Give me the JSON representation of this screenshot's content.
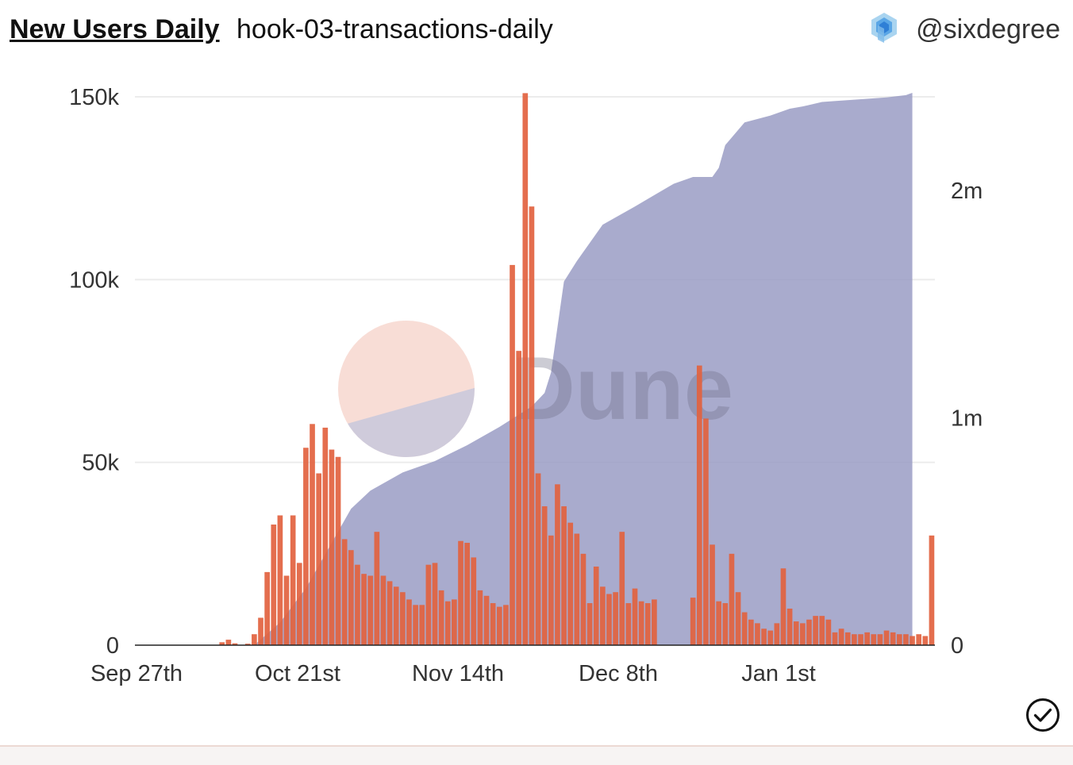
{
  "header": {
    "title": "New Users Daily",
    "subtitle": "hook-03-transactions-daily",
    "author": "@sixdegree",
    "author_icon": "cube-cluster-icon"
  },
  "watermark": {
    "text": "Dune"
  },
  "colors": {
    "bars": "#e2623f",
    "area": "#9a9cc4",
    "watermark_top": "#f5cfc4",
    "watermark_bottom": "#c4c7dc"
  },
  "chart_data": {
    "type": "bar",
    "x_tick_labels": [
      "Sep 27th",
      "Oct 21st",
      "Nov 14th",
      "Dec 8th",
      "Jan 1st"
    ],
    "y_left": {
      "ticks": [
        0,
        50000,
        100000,
        150000
      ],
      "tick_labels": [
        "0",
        "50k",
        "100k",
        "150k"
      ],
      "lim": [
        0,
        150000
      ]
    },
    "y_right": {
      "ticks": [
        0,
        1000000,
        2000000
      ],
      "tick_labels": [
        "0",
        "1m",
        "2m"
      ],
      "lim": [
        0,
        2430000
      ]
    },
    "grid": true,
    "series": [
      {
        "type": "bar",
        "axis": "left",
        "values": [
          0,
          0,
          0,
          0,
          0,
          0,
          0,
          0,
          0,
          0,
          0,
          0,
          0,
          800,
          1500,
          500,
          0,
          400,
          3000,
          7500,
          20000,
          33000,
          35500,
          19000,
          35500,
          22500,
          54000,
          60500,
          47000,
          59500,
          53500,
          51500,
          29000,
          26000,
          22000,
          19500,
          19000,
          31000,
          19000,
          17500,
          16000,
          14500,
          12500,
          11000,
          11000,
          22000,
          22500,
          15000,
          12000,
          12500,
          28500,
          28000,
          24000,
          15000,
          13500,
          11500,
          10500,
          11000,
          104000,
          80500,
          151000,
          120000,
          47000,
          38000,
          30000,
          44000,
          38000,
          33500,
          30500,
          25000,
          11500,
          21500,
          16000,
          14000,
          14500,
          31000,
          11500,
          15500,
          12000,
          11500,
          12500,
          0,
          0,
          0,
          0,
          0,
          13000,
          76500,
          62000,
          27500,
          12000,
          11500,
          25000,
          14500,
          9000,
          7000,
          6000,
          4500,
          4000,
          6000,
          21000,
          10000,
          6500,
          6000,
          7000,
          8000,
          8000,
          7000,
          3500,
          4500,
          3500,
          3000,
          3000,
          3500,
          3000,
          3000,
          4000,
          3500,
          3000,
          3000,
          2500,
          3000,
          2500,
          30000
        ]
      },
      {
        "type": "area",
        "axis": "right",
        "cumulative_points": [
          [
            0,
            0
          ],
          [
            18,
            0
          ],
          [
            19,
            25000
          ],
          [
            22,
            100000
          ],
          [
            26,
            250000
          ],
          [
            29,
            400000
          ],
          [
            33,
            600000
          ],
          [
            36,
            680000
          ],
          [
            41,
            760000
          ],
          [
            46,
            810000
          ],
          [
            51,
            880000
          ],
          [
            56,
            960000
          ],
          [
            61,
            1050000
          ],
          [
            63,
            1110000
          ],
          [
            64,
            1200000
          ],
          [
            65,
            1400000
          ],
          [
            66,
            1600000
          ],
          [
            68,
            1690000
          ],
          [
            72,
            1850000
          ],
          [
            77,
            1930000
          ],
          [
            80,
            1980000
          ],
          [
            83,
            2030000
          ],
          [
            86,
            2060000
          ],
          [
            89,
            2060000
          ],
          [
            90,
            2100000
          ],
          [
            91,
            2200000
          ],
          [
            94,
            2300000
          ],
          [
            98,
            2330000
          ],
          [
            101,
            2360000
          ],
          [
            103,
            2370000
          ],
          [
            106,
            2390000
          ],
          [
            111,
            2400000
          ],
          [
            116,
            2410000
          ],
          [
            119,
            2420000
          ],
          [
            120,
            2430000
          ]
        ]
      }
    ]
  }
}
